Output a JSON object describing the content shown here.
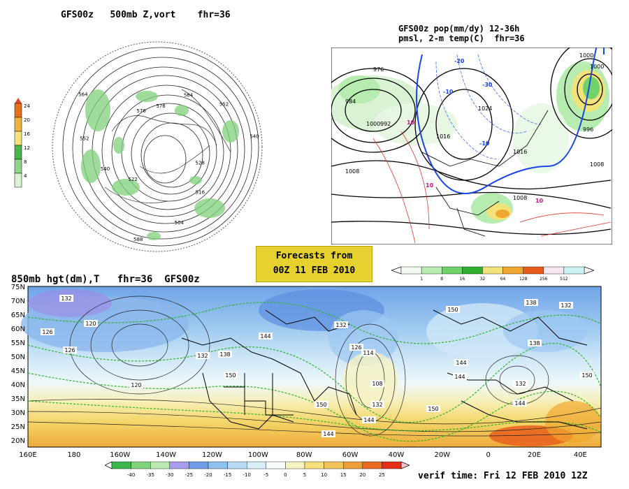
{
  "panels": {
    "polar": {
      "title": "GFS00z   500mb Z,vort    fhr=36",
      "legend_values": [
        "24",
        "20",
        "16",
        "12",
        "8",
        "4"
      ],
      "legend_colors": [
        "#e8701a",
        "#f0b33c",
        "#f6e37a",
        "#49b54a",
        "#8fd68c",
        "#d8f2d3"
      ],
      "contour_labels": [
        "576",
        "564",
        "552",
        "540",
        "528",
        "516",
        "504",
        "588",
        "522",
        "540",
        "552",
        "564",
        "576"
      ]
    },
    "precip": {
      "title_line1": "GFS00z pop(mm/dy) 12-36h",
      "title_line2": "pmsl, 2-m temp(C)  fhr=36",
      "colorbar_values": [
        "1",
        "8",
        "16",
        "32",
        "64",
        "128",
        "256",
        "512"
      ],
      "colorbar_colors": [
        "#f0fbef",
        "#b6ecb0",
        "#6fd36a",
        "#2fb02f",
        "#f2e27a",
        "#f0a630",
        "#e85a1a",
        "#f5e6f2",
        "#c9f2f0"
      ],
      "isobar_labels": [
        "1000",
        "976",
        "984",
        "992",
        "1000",
        "1024",
        "1008",
        "1016",
        "1016",
        "1008",
        "1000",
        "996",
        "1008"
      ],
      "temp_labels": [
        "-20",
        "-10",
        "-30",
        "-10",
        "10",
        "10",
        "10"
      ]
    },
    "forecast_box": {
      "line1": "Forecasts from",
      "line2": "00Z 11 FEB 2010"
    },
    "bottom": {
      "title": "850mb hgt(dm),T   fhr=36  GFS00z",
      "lat_labels": [
        "75N",
        "70N",
        "65N",
        "60N",
        "55N",
        "50N",
        "45N",
        "40N",
        "35N",
        "30N",
        "25N",
        "20N"
      ],
      "lon_labels": [
        "160E",
        "180",
        "160W",
        "140W",
        "120W",
        "100W",
        "80W",
        "60W",
        "40W",
        "20W",
        "0",
        "20E",
        "40E"
      ],
      "height_labels": [
        "126",
        "132",
        "120",
        "126",
        "120",
        "144",
        "132",
        "138",
        "150",
        "144",
        "150",
        "132",
        "126",
        "114",
        "108",
        "132",
        "144",
        "138",
        "150",
        "144",
        "138",
        "132",
        "144",
        "150",
        "150",
        "132",
        "144"
      ],
      "colorbar_values": [
        "-40",
        "-35",
        "-30",
        "-25",
        "-20",
        "-15",
        "-10",
        "-5",
        "0",
        "5",
        "10",
        "15",
        "20",
        "25"
      ],
      "colorbar_colors": [
        "#3cb54a",
        "#7fd37a",
        "#b9e8b0",
        "#a79cf0",
        "#6f9ee6",
        "#8fc1f0",
        "#b7dbf5",
        "#d8eef8",
        "#f6fbfb",
        "#f8f2c3",
        "#f4df7a",
        "#f0c45a",
        "#ec9f3a",
        "#ea6a22",
        "#e62e16"
      ],
      "verif": "verif time: Fri 12 FEB 2010 12Z"
    }
  }
}
